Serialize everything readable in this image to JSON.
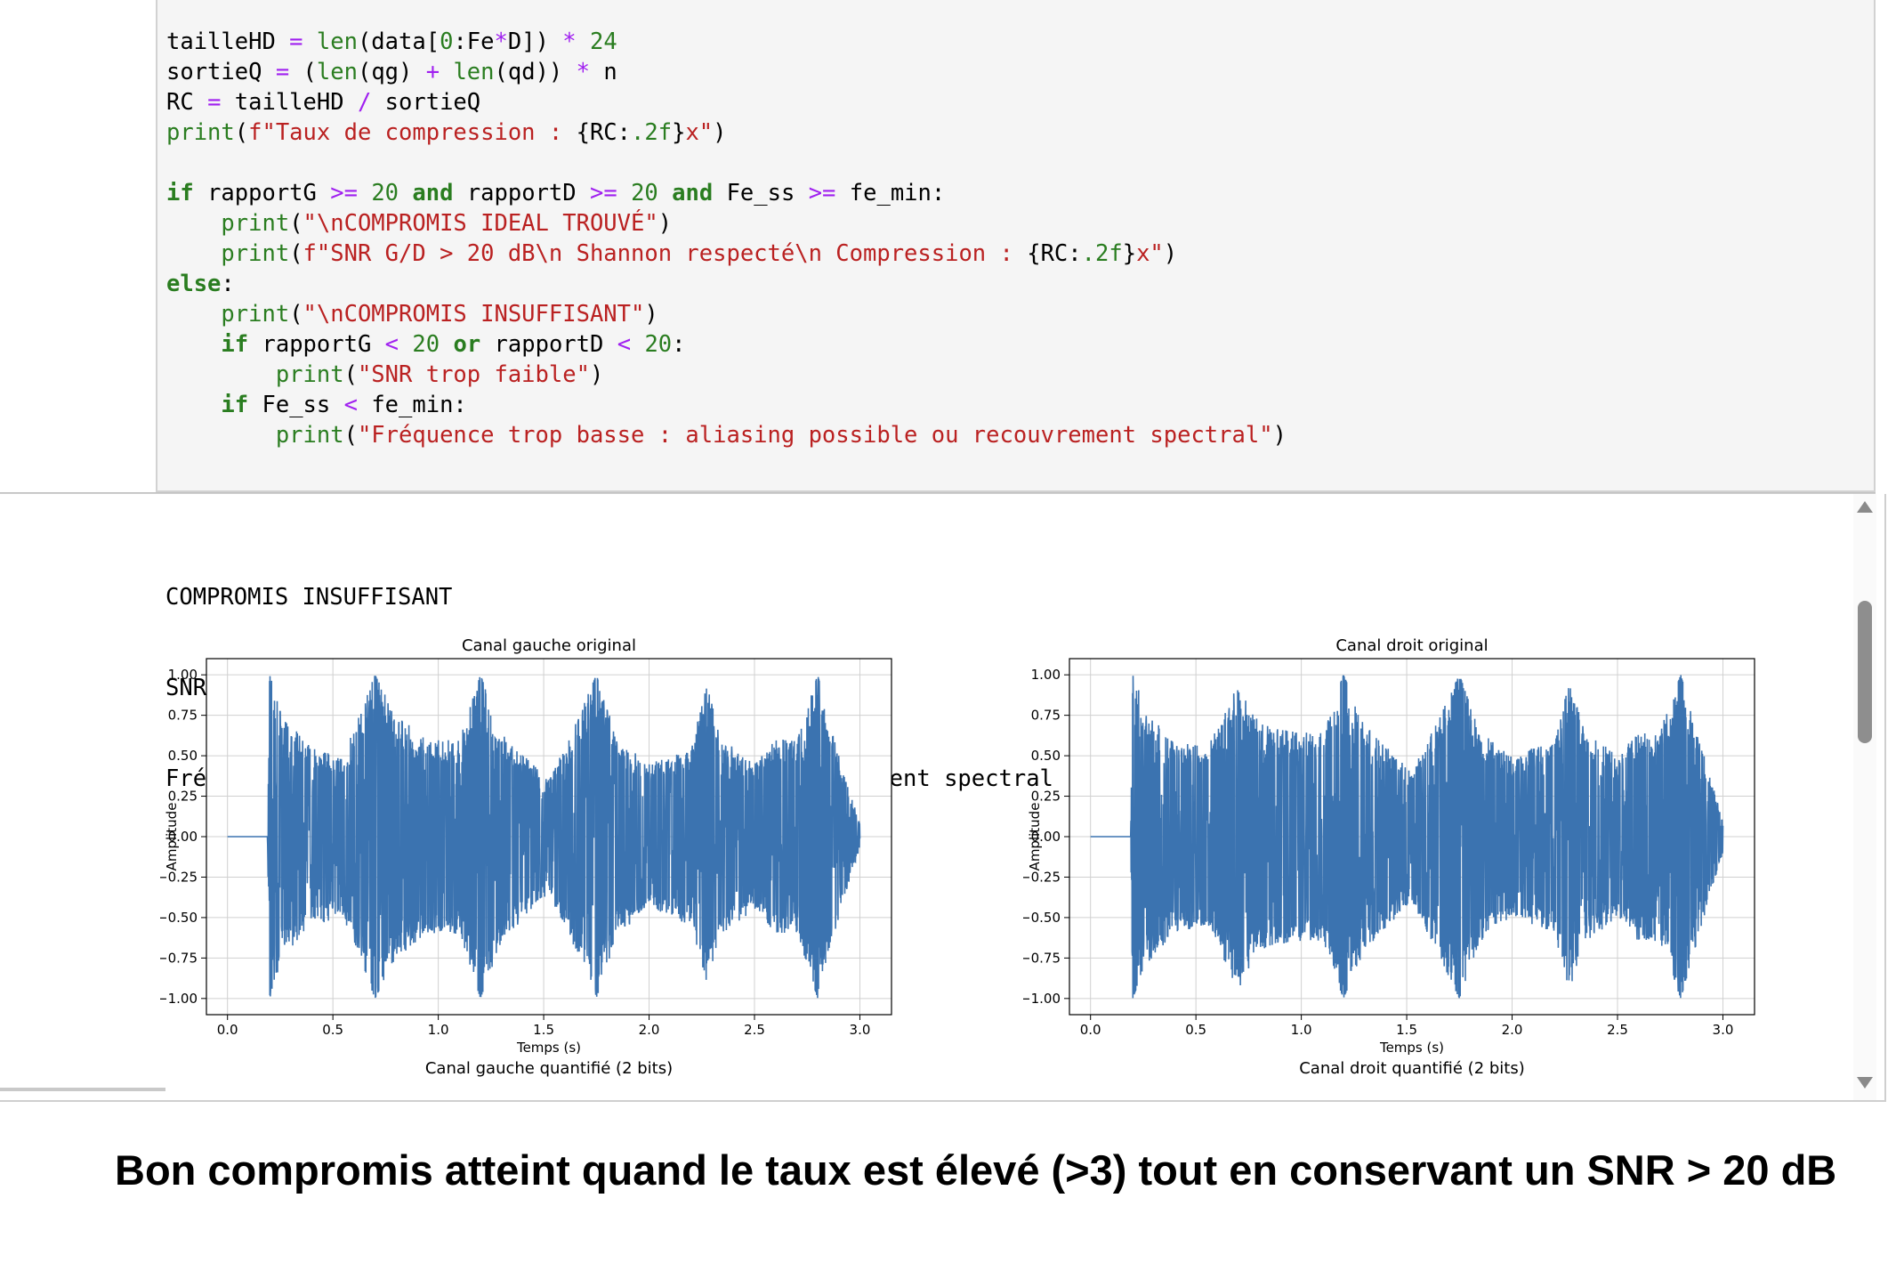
{
  "code_cell": {
    "lines": [
      [
        {
          "t": "tailleHD ",
          "c": ""
        },
        {
          "t": "=",
          "c": "op"
        },
        {
          "t": " ",
          "c": ""
        },
        {
          "t": "len",
          "c": "bi"
        },
        {
          "t": "(data[",
          "c": ""
        },
        {
          "t": "0",
          "c": "num"
        },
        {
          "t": ":Fe",
          "c": ""
        },
        {
          "t": "*",
          "c": "op"
        },
        {
          "t": "D]) ",
          "c": ""
        },
        {
          "t": "*",
          "c": "op"
        },
        {
          "t": " ",
          "c": ""
        },
        {
          "t": "24",
          "c": "num"
        }
      ],
      [
        {
          "t": "sortieQ ",
          "c": ""
        },
        {
          "t": "=",
          "c": "op"
        },
        {
          "t": " (",
          "c": ""
        },
        {
          "t": "len",
          "c": "bi"
        },
        {
          "t": "(qg) ",
          "c": ""
        },
        {
          "t": "+",
          "c": "op"
        },
        {
          "t": " ",
          "c": ""
        },
        {
          "t": "len",
          "c": "bi"
        },
        {
          "t": "(qd)) ",
          "c": ""
        },
        {
          "t": "*",
          "c": "op"
        },
        {
          "t": " n",
          "c": ""
        }
      ],
      [
        {
          "t": "RC ",
          "c": ""
        },
        {
          "t": "=",
          "c": "op"
        },
        {
          "t": " tailleHD ",
          "c": ""
        },
        {
          "t": "/",
          "c": "op"
        },
        {
          "t": " sortieQ",
          "c": ""
        }
      ],
      [
        {
          "t": "print",
          "c": "bi"
        },
        {
          "t": "(",
          "c": ""
        },
        {
          "t": "f\"Taux de compression : ",
          "c": "str"
        },
        {
          "t": "{RC:",
          "c": ""
        },
        {
          "t": ".2f",
          "c": "num"
        },
        {
          "t": "}",
          "c": ""
        },
        {
          "t": "x\"",
          "c": "str"
        },
        {
          "t": ")",
          "c": ""
        }
      ],
      [],
      [
        {
          "t": "if",
          "c": "kw"
        },
        {
          "t": " rapportG ",
          "c": ""
        },
        {
          "t": ">=",
          "c": "op"
        },
        {
          "t": " ",
          "c": ""
        },
        {
          "t": "20",
          "c": "num"
        },
        {
          "t": " ",
          "c": ""
        },
        {
          "t": "and",
          "c": "kw"
        },
        {
          "t": " rapportD ",
          "c": ""
        },
        {
          "t": ">=",
          "c": "op"
        },
        {
          "t": " ",
          "c": ""
        },
        {
          "t": "20",
          "c": "num"
        },
        {
          "t": " ",
          "c": ""
        },
        {
          "t": "and",
          "c": "kw"
        },
        {
          "t": " Fe_ss ",
          "c": ""
        },
        {
          "t": ">=",
          "c": "op"
        },
        {
          "t": " fe_min:",
          "c": ""
        }
      ],
      [
        {
          "t": "    ",
          "c": ""
        },
        {
          "t": "print",
          "c": "bi"
        },
        {
          "t": "(",
          "c": ""
        },
        {
          "t": "\"\\nCOMPROMIS IDEAL TROUVÉ\"",
          "c": "str"
        },
        {
          "t": ")",
          "c": ""
        }
      ],
      [
        {
          "t": "    ",
          "c": ""
        },
        {
          "t": "print",
          "c": "bi"
        },
        {
          "t": "(",
          "c": ""
        },
        {
          "t": "f\"SNR G/D > 20 dB\\n Shannon respecté\\n Compression : ",
          "c": "str"
        },
        {
          "t": "{RC:",
          "c": ""
        },
        {
          "t": ".2f",
          "c": "num"
        },
        {
          "t": "}",
          "c": ""
        },
        {
          "t": "x\"",
          "c": "str"
        },
        {
          "t": ")",
          "c": ""
        }
      ],
      [
        {
          "t": "else",
          "c": "kw"
        },
        {
          "t": ":",
          "c": ""
        }
      ],
      [
        {
          "t": "    ",
          "c": ""
        },
        {
          "t": "print",
          "c": "bi"
        },
        {
          "t": "(",
          "c": ""
        },
        {
          "t": "\"\\nCOMPROMIS INSUFFISANT\"",
          "c": "str"
        },
        {
          "t": ")",
          "c": ""
        }
      ],
      [
        {
          "t": "    ",
          "c": ""
        },
        {
          "t": "if",
          "c": "kw"
        },
        {
          "t": " rapportG ",
          "c": ""
        },
        {
          "t": "<",
          "c": "op"
        },
        {
          "t": " ",
          "c": ""
        },
        {
          "t": "20",
          "c": "num"
        },
        {
          "t": " ",
          "c": ""
        },
        {
          "t": "or",
          "c": "kw"
        },
        {
          "t": " rapportD ",
          "c": ""
        },
        {
          "t": "<",
          "c": "op"
        },
        {
          "t": " ",
          "c": ""
        },
        {
          "t": "20",
          "c": "num"
        },
        {
          "t": ":",
          "c": ""
        }
      ],
      [
        {
          "t": "        ",
          "c": ""
        },
        {
          "t": "print",
          "c": "bi"
        },
        {
          "t": "(",
          "c": ""
        },
        {
          "t": "\"SNR trop faible\"",
          "c": "str"
        },
        {
          "t": ")",
          "c": ""
        }
      ],
      [
        {
          "t": "    ",
          "c": ""
        },
        {
          "t": "if",
          "c": "kw"
        },
        {
          "t": " Fe_ss ",
          "c": ""
        },
        {
          "t": "<",
          "c": "op"
        },
        {
          "t": " fe_min:",
          "c": ""
        }
      ],
      [
        {
          "t": "        ",
          "c": ""
        },
        {
          "t": "print",
          "c": "bi"
        },
        {
          "t": "(",
          "c": ""
        },
        {
          "t": "\"Fréquence trop basse : aliasing possible ou recouvrement spectral\"",
          "c": "str"
        },
        {
          "t": ")",
          "c": ""
        }
      ]
    ]
  },
  "output": {
    "lines": [
      "COMPROMIS INSUFFISANT",
      "SNR trop faible",
      "Fréquence trop basse : aliasing possible ou recouvrement spectral"
    ]
  },
  "colors": {
    "waveform": "#3b73b0",
    "keyword": "#2a7d20",
    "operator": "#a020f0",
    "string": "#ba2121"
  },
  "chart_data": [
    {
      "type": "line",
      "title": "Canal gauche original",
      "xlabel": "Temps (s)",
      "ylabel": "Amplitude",
      "next_title": "Canal gauche quantifié (2 bits)",
      "xlim": [
        -0.1,
        3.15
      ],
      "ylim": [
        -1.1,
        1.1
      ],
      "xticks": [
        "0.0",
        "0.5",
        "1.0",
        "1.5",
        "2.0",
        "2.5",
        "3.0"
      ],
      "xtick_values": [
        0,
        0.5,
        1,
        1.5,
        2,
        2.5,
        3
      ],
      "yticks": [
        "1.00",
        "0.75",
        "0.50",
        "0.25",
        "0.00",
        "−0.25",
        "−0.50",
        "−0.75",
        "−1.00"
      ],
      "ytick_values": [
        1,
        0.75,
        0.5,
        0.25,
        0,
        -0.25,
        -0.5,
        -0.75,
        -1
      ],
      "grid": true,
      "duration": 3.0,
      "silence_until": 0.19,
      "envelope": [
        [
          0.0,
          0.01
        ],
        [
          0.19,
          0.01
        ],
        [
          0.2,
          1.0
        ],
        [
          0.26,
          0.75
        ],
        [
          0.4,
          0.55
        ],
        [
          0.55,
          0.5
        ],
        [
          0.7,
          1.0
        ],
        [
          0.8,
          0.75
        ],
        [
          0.95,
          0.6
        ],
        [
          1.1,
          0.6
        ],
        [
          1.2,
          1.0
        ],
        [
          1.3,
          0.65
        ],
        [
          1.45,
          0.45
        ],
        [
          1.52,
          0.35
        ],
        [
          1.6,
          0.55
        ],
        [
          1.75,
          1.0
        ],
        [
          1.85,
          0.6
        ],
        [
          2.0,
          0.45
        ],
        [
          2.2,
          0.55
        ],
        [
          2.27,
          0.95
        ],
        [
          2.35,
          0.6
        ],
        [
          2.5,
          0.45
        ],
        [
          2.6,
          0.6
        ],
        [
          2.7,
          0.6
        ],
        [
          2.8,
          1.0
        ],
        [
          2.9,
          0.5
        ],
        [
          3.0,
          0.08
        ]
      ]
    },
    {
      "type": "line",
      "title": "Canal droit original",
      "xlabel": "Temps (s)",
      "ylabel": "Amplitude",
      "next_title": "Canal droit quantifié (2 bits)",
      "xlim": [
        -0.1,
        3.15
      ],
      "ylim": [
        -1.1,
        1.1
      ],
      "xticks": [
        "0.0",
        "0.5",
        "1.0",
        "1.5",
        "2.0",
        "2.5",
        "3.0"
      ],
      "xtick_values": [
        0,
        0.5,
        1,
        1.5,
        2,
        2.5,
        3
      ],
      "yticks": [
        "1.00",
        "0.75",
        "0.50",
        "0.25",
        "0.00",
        "−0.25",
        "−0.50",
        "−0.75",
        "−1.00"
      ],
      "ytick_values": [
        1,
        0.75,
        0.5,
        0.25,
        0,
        -0.25,
        -0.5,
        -0.75,
        -1
      ],
      "grid": true,
      "duration": 3.0,
      "silence_until": 0.19,
      "envelope": [
        [
          0.0,
          0.01
        ],
        [
          0.19,
          0.01
        ],
        [
          0.2,
          1.0
        ],
        [
          0.26,
          0.8
        ],
        [
          0.4,
          0.6
        ],
        [
          0.55,
          0.55
        ],
        [
          0.7,
          0.95
        ],
        [
          0.8,
          0.7
        ],
        [
          0.95,
          0.65
        ],
        [
          1.1,
          0.65
        ],
        [
          1.2,
          1.0
        ],
        [
          1.3,
          0.7
        ],
        [
          1.45,
          0.5
        ],
        [
          1.52,
          0.4
        ],
        [
          1.6,
          0.6
        ],
        [
          1.75,
          1.0
        ],
        [
          1.85,
          0.65
        ],
        [
          2.0,
          0.5
        ],
        [
          2.2,
          0.6
        ],
        [
          2.27,
          0.95
        ],
        [
          2.35,
          0.65
        ],
        [
          2.5,
          0.5
        ],
        [
          2.6,
          0.65
        ],
        [
          2.7,
          0.65
        ],
        [
          2.8,
          1.0
        ],
        [
          2.9,
          0.55
        ],
        [
          3.0,
          0.1
        ]
      ]
    }
  ],
  "caption": {
    "text": "Bon compromis atteint quand le taux est élevé (>3) tout en conservant un SNR > 20 dB"
  }
}
